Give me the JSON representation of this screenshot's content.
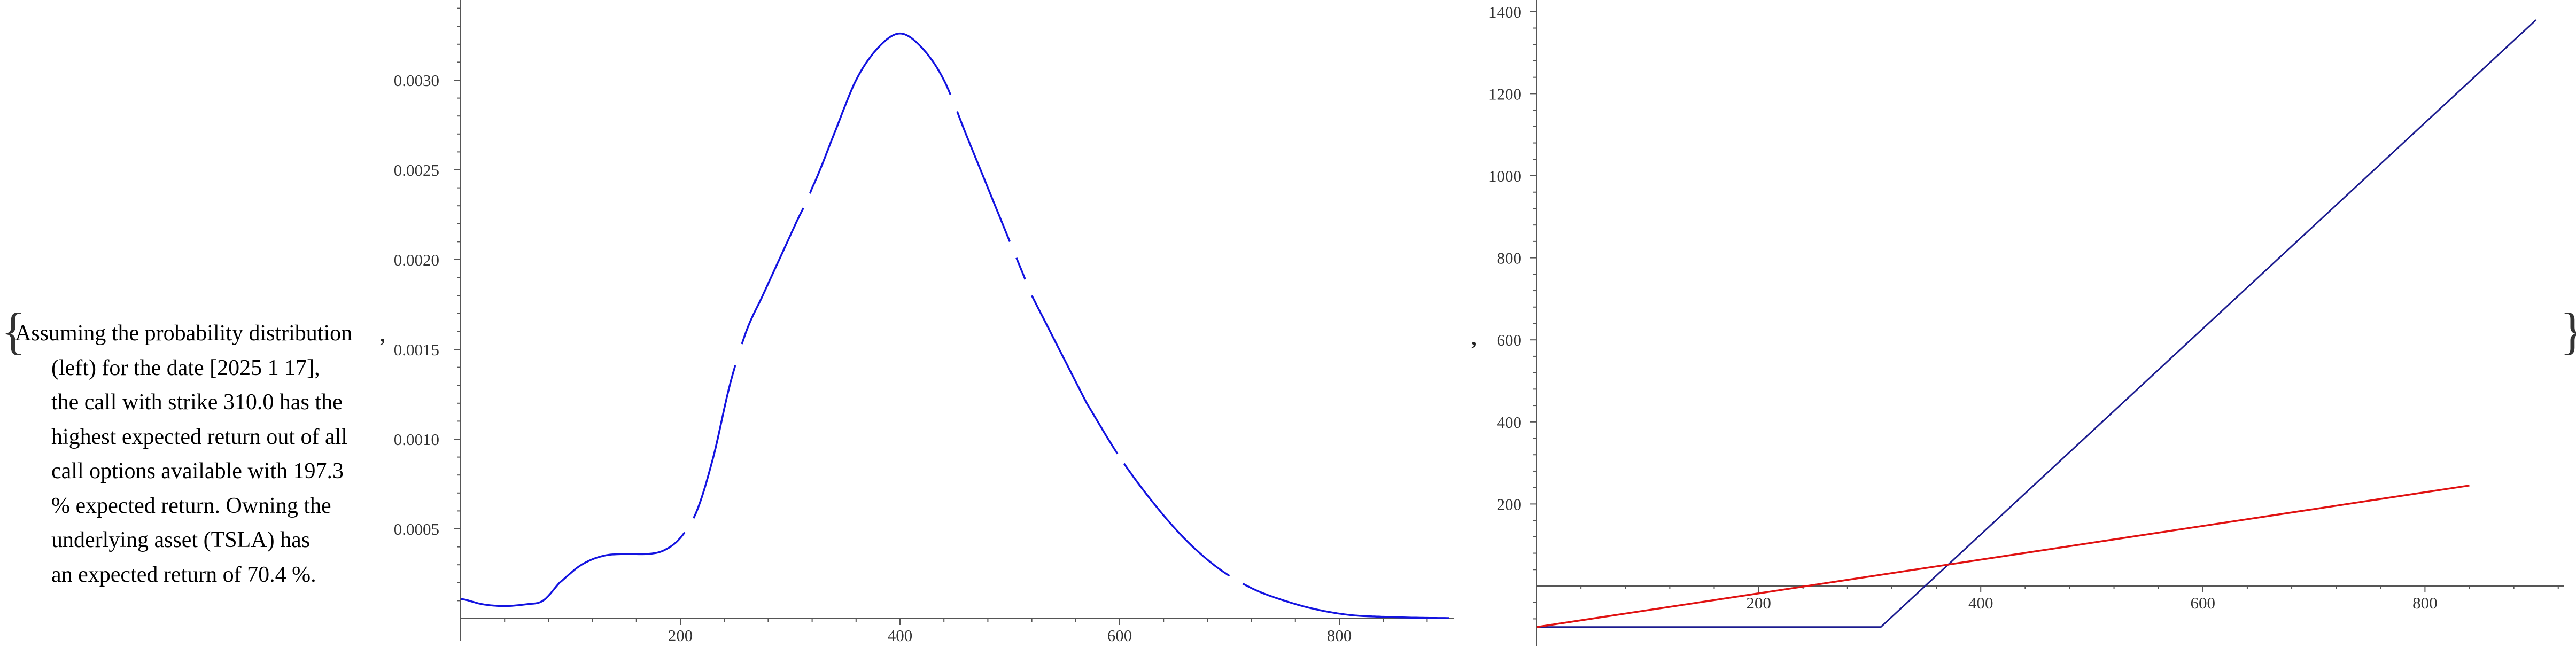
{
  "brackets": {
    "open": "{",
    "close": "}",
    "separator": ","
  },
  "caption_lines": [
    "Assuming the probability distribution",
    "(left) for the date [2025 1 17],",
    "the call with strike 310.0 has the",
    "highest expected return out of all",
    "call options available with 197.3",
    "% expected return. Owning the",
    "underlying asset (TSLA) has",
    "an expected return of 70.4 %."
  ],
  "colors": {
    "density": "#1414e0",
    "call_payoff": "#1c1c8f",
    "stock_payoff": "#e01212",
    "axes": "#555555"
  },
  "chart_data": [
    {
      "type": "line",
      "x_ticks": [
        200,
        400,
        600,
        800
      ],
      "y_ticks": [
        0.0005,
        0.001,
        0.0015,
        0.002,
        0.0025,
        0.003
      ],
      "y_tick_labels": [
        "0.0005",
        "0.0010",
        "0.0015",
        "0.0020",
        "0.0025",
        "0.0030"
      ],
      "x_tick_labels": [
        "200",
        "400",
        "600",
        "800"
      ],
      "xlim": [
        0,
        905
      ],
      "ylim": [
        0,
        0.0034
      ],
      "series": [
        {
          "points": [
            [
              0,
              0.00011
            ],
            [
              20,
              8e-05
            ],
            [
              40,
              7e-05
            ],
            [
              60,
              8e-05
            ],
            [
              75,
              0.0001
            ],
            [
              90,
              0.0002
            ],
            [
              110,
              0.0003
            ],
            [
              130,
              0.00035
            ],
            [
              150,
              0.00036
            ],
            [
              170,
              0.00036
            ],
            [
              185,
              0.00038
            ],
            [
              200,
              0.00045
            ],
            [
              215,
              0.0006
            ],
            [
              230,
              0.0009
            ],
            [
              245,
              0.0013
            ],
            [
              260,
              0.0016
            ],
            [
              275,
              0.0018
            ],
            [
              290,
              0.002
            ],
            [
              305,
              0.0022
            ],
            [
              320,
              0.0024
            ],
            [
              340,
              0.0027
            ],
            [
              360,
              0.003
            ],
            [
              380,
              0.00318
            ],
            [
              400,
              0.00326
            ],
            [
              420,
              0.00318
            ],
            [
              440,
              0.003
            ],
            [
              460,
              0.0027
            ],
            [
              480,
              0.0024
            ],
            [
              500,
              0.0021
            ],
            [
              520,
              0.0018
            ],
            [
              545,
              0.0015
            ],
            [
              570,
              0.0012
            ],
            [
              600,
              0.0009
            ],
            [
              630,
              0.00065
            ],
            [
              660,
              0.00044
            ],
            [
              690,
              0.00028
            ],
            [
              720,
              0.00017
            ],
            [
              750,
              0.0001
            ],
            [
              780,
              5e-05
            ],
            [
              810,
              2e-05
            ],
            [
              840,
              1e-05
            ],
            [
              870,
              5e-06
            ],
            [
              900,
              3e-06
            ]
          ],
          "gaps": [
            [
              205,
              212
            ],
            [
              250,
              256
            ],
            [
              312,
              318
            ],
            [
              446,
              452
            ],
            [
              500,
              506
            ],
            [
              515,
              520
            ],
            [
              598,
              604
            ],
            [
              700,
              712
            ]
          ]
        }
      ]
    },
    {
      "type": "line",
      "x_ticks": [
        200,
        400,
        600,
        800
      ],
      "x_tick_labels": [
        "200",
        "400",
        "600",
        "800"
      ],
      "y_ticks": [
        200,
        400,
        600,
        800,
        1000,
        1200,
        1400
      ],
      "y_tick_labels": [
        "200",
        "400",
        "600",
        "800",
        "1000",
        "1200",
        "1400"
      ],
      "xlim": [
        0,
        910
      ],
      "ylim": [
        -100,
        1400
      ],
      "series": [
        {
          "points": [
            [
              0,
              -100
            ],
            [
              310,
              -100
            ],
            [
              900,
              1380
            ]
          ]
        },
        {
          "points": [
            [
              0,
              -100
            ],
            [
              840,
              245
            ]
          ]
        }
      ]
    }
  ]
}
